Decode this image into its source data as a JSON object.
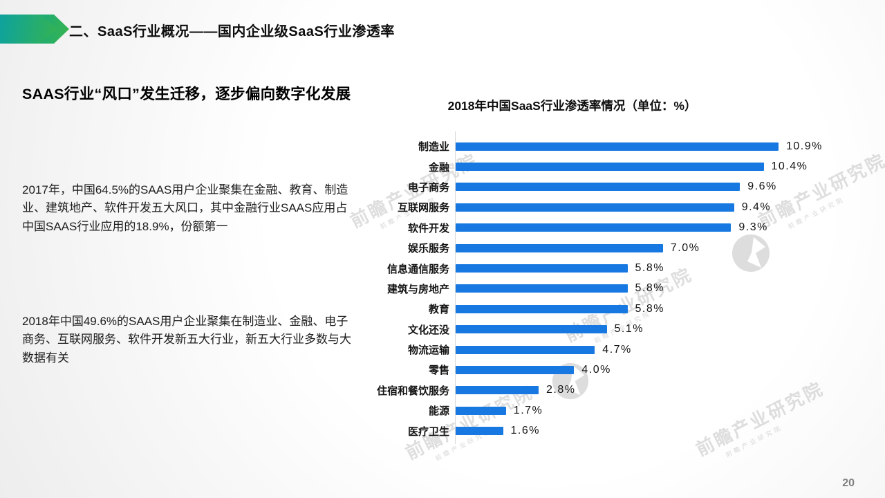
{
  "header": {
    "title": "二、SaaS行业概况——国内企业级SaaS行业渗透率"
  },
  "main": {
    "heading": "SAAS行业“风口”发生迁移，逐步偏向数字化发展",
    "paragraphs": [
      "2017年，中国64.5%的SAAS用户企业聚集在金融、教育、制造业、建筑地产、软件开发五大风口，其中金融行业SAAS应用占中国SAAS行业应用的18.9%，份额第一",
      "2018年中国49.6%的SAAS用户企业聚集在制造业、金融、电子商务、互联网服务、软件开发新五大行业，新五大行业多数与大数据有关"
    ]
  },
  "chart_data": {
    "type": "bar",
    "orientation": "horizontal",
    "title": "2018年中国SaaS行业渗透率情况（单位：%）",
    "unit": "%",
    "categories": [
      "制造业",
      "金融",
      "电子商务",
      "互联网服务",
      "软件开发",
      "娱乐服务",
      "信息通信服务",
      "建筑与房地产",
      "教育",
      "文化还没",
      "物流运输",
      "零售",
      "住宿和餐饮服务",
      "能源",
      "医疗卫生"
    ],
    "values": [
      10.9,
      10.4,
      9.6,
      9.4,
      9.3,
      7.0,
      5.8,
      5.8,
      5.8,
      5.1,
      4.7,
      4.0,
      2.8,
      1.7,
      1.6
    ],
    "value_labels": [
      "10.9%",
      "10.4%",
      "9.6%",
      "9.4%",
      "9.3%",
      "7.0%",
      "5.8%",
      "5.8%",
      "5.8%",
      "5.1%",
      "4.7%",
      "4.0%",
      "2.8%",
      "1.7%",
      "1.6%"
    ],
    "xlim": [
      0,
      11
    ],
    "bar_color": "#1678e0",
    "grid": false,
    "legend": "none"
  },
  "watermark": {
    "text": "前瞻产业研究院",
    "subtext": "前瞻产业研究院"
  },
  "footer": {
    "page_number": "20"
  },
  "colors": {
    "bar": "#1678e0",
    "accent_teal": "#0da29e",
    "accent_green": "#35b351",
    "axis": "#d9d9d9"
  }
}
